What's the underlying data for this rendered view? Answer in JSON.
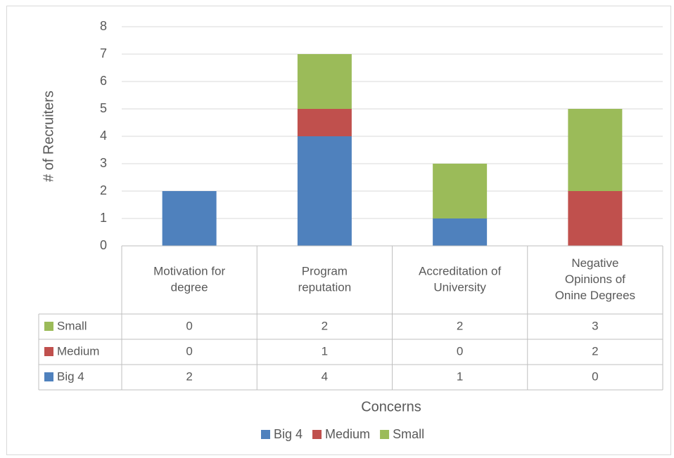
{
  "chart_data": {
    "type": "bar",
    "stacked": true,
    "categories": [
      [
        "Motivation for",
        "degree"
      ],
      [
        "Program",
        "reputation"
      ],
      [
        "Accreditation of",
        "University"
      ],
      [
        "Negative",
        "Opinions of",
        "Onine Degrees"
      ]
    ],
    "series": [
      {
        "name": "Big 4",
        "color": "#4f81bd",
        "values": [
          2,
          4,
          1,
          0
        ]
      },
      {
        "name": "Medium",
        "color": "#c0504d",
        "values": [
          0,
          1,
          0,
          2
        ]
      },
      {
        "name": "Small",
        "color": "#9bbb59",
        "values": [
          0,
          2,
          2,
          3
        ]
      }
    ],
    "table_series_order": [
      "Small",
      "Medium",
      "Big 4"
    ],
    "xlabel": "Concerns",
    "ylabel": "# of Recruiters",
    "ylim": [
      0,
      8
    ],
    "yticks": [
      "0",
      "1",
      "2",
      "3",
      "4",
      "5",
      "6",
      "7",
      "8"
    ],
    "grid": true,
    "legend_position": "bottom",
    "data_table": true
  }
}
